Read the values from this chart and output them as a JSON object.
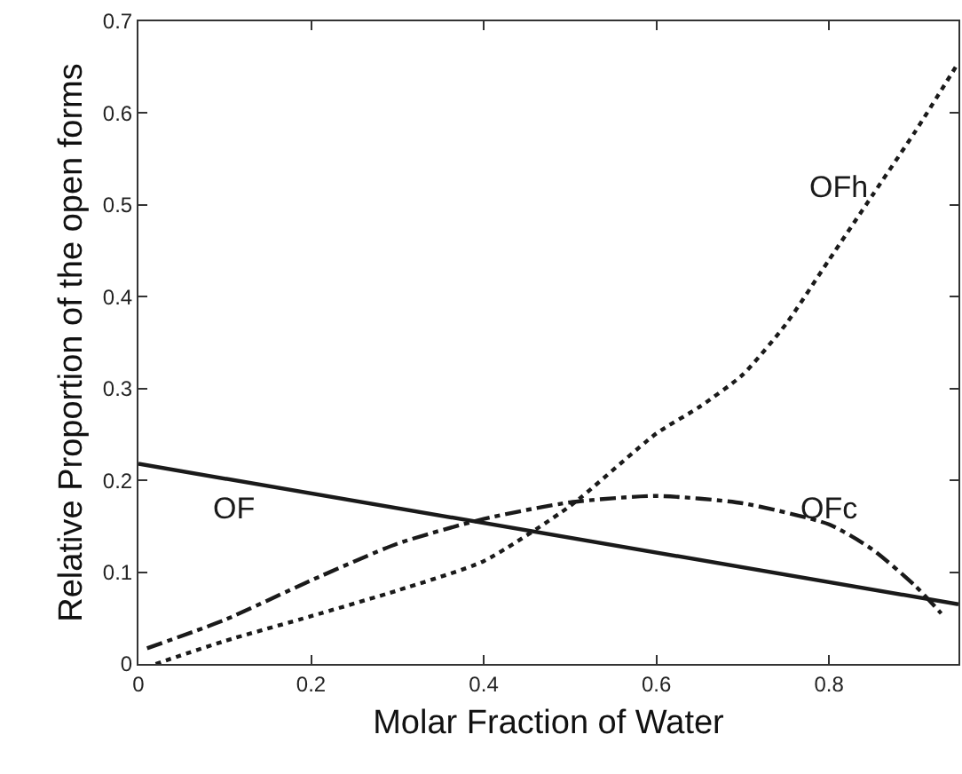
{
  "chart_data": {
    "type": "line",
    "xlabel": "Molar Fraction of Water",
    "ylabel": "Relative Proportion of the open forms",
    "xlim": [
      0,
      0.95
    ],
    "ylim": [
      0,
      0.7
    ],
    "xticks": [
      0,
      0.2,
      0.4,
      0.6,
      0.8
    ],
    "yticks": [
      0,
      0.1,
      0.2,
      0.3,
      0.4,
      0.5,
      0.6,
      0.7
    ],
    "legend": false,
    "marker": "none",
    "series": [
      {
        "name": "OF",
        "color": "#1a1a1a",
        "line_style": "solid",
        "x": [
          0,
          0.95
        ],
        "values": [
          0.218,
          0.065
        ]
      },
      {
        "name": "OFc",
        "color": "#1a1a1a",
        "line_style": "dashdot",
        "x": [
          0.01,
          0.1,
          0.2,
          0.3,
          0.4,
          0.5,
          0.6,
          0.7,
          0.8,
          0.85,
          0.9,
          0.93
        ],
        "values": [
          0.017,
          0.048,
          0.091,
          0.131,
          0.158,
          0.176,
          0.183,
          0.175,
          0.152,
          0.125,
          0.085,
          0.055
        ]
      },
      {
        "name": "OFh",
        "color": "#1a1a1a",
        "line_style": "dotted",
        "x": [
          0.02,
          0.1,
          0.2,
          0.3,
          0.4,
          0.5,
          0.6,
          0.65,
          0.7,
          0.75,
          0.8,
          0.85,
          0.9,
          0.95
        ],
        "values": [
          0,
          0.025,
          0.052,
          0.08,
          0.112,
          0.172,
          0.251,
          0.28,
          0.315,
          0.37,
          0.44,
          0.51,
          0.58,
          0.655
        ]
      }
    ]
  }
}
